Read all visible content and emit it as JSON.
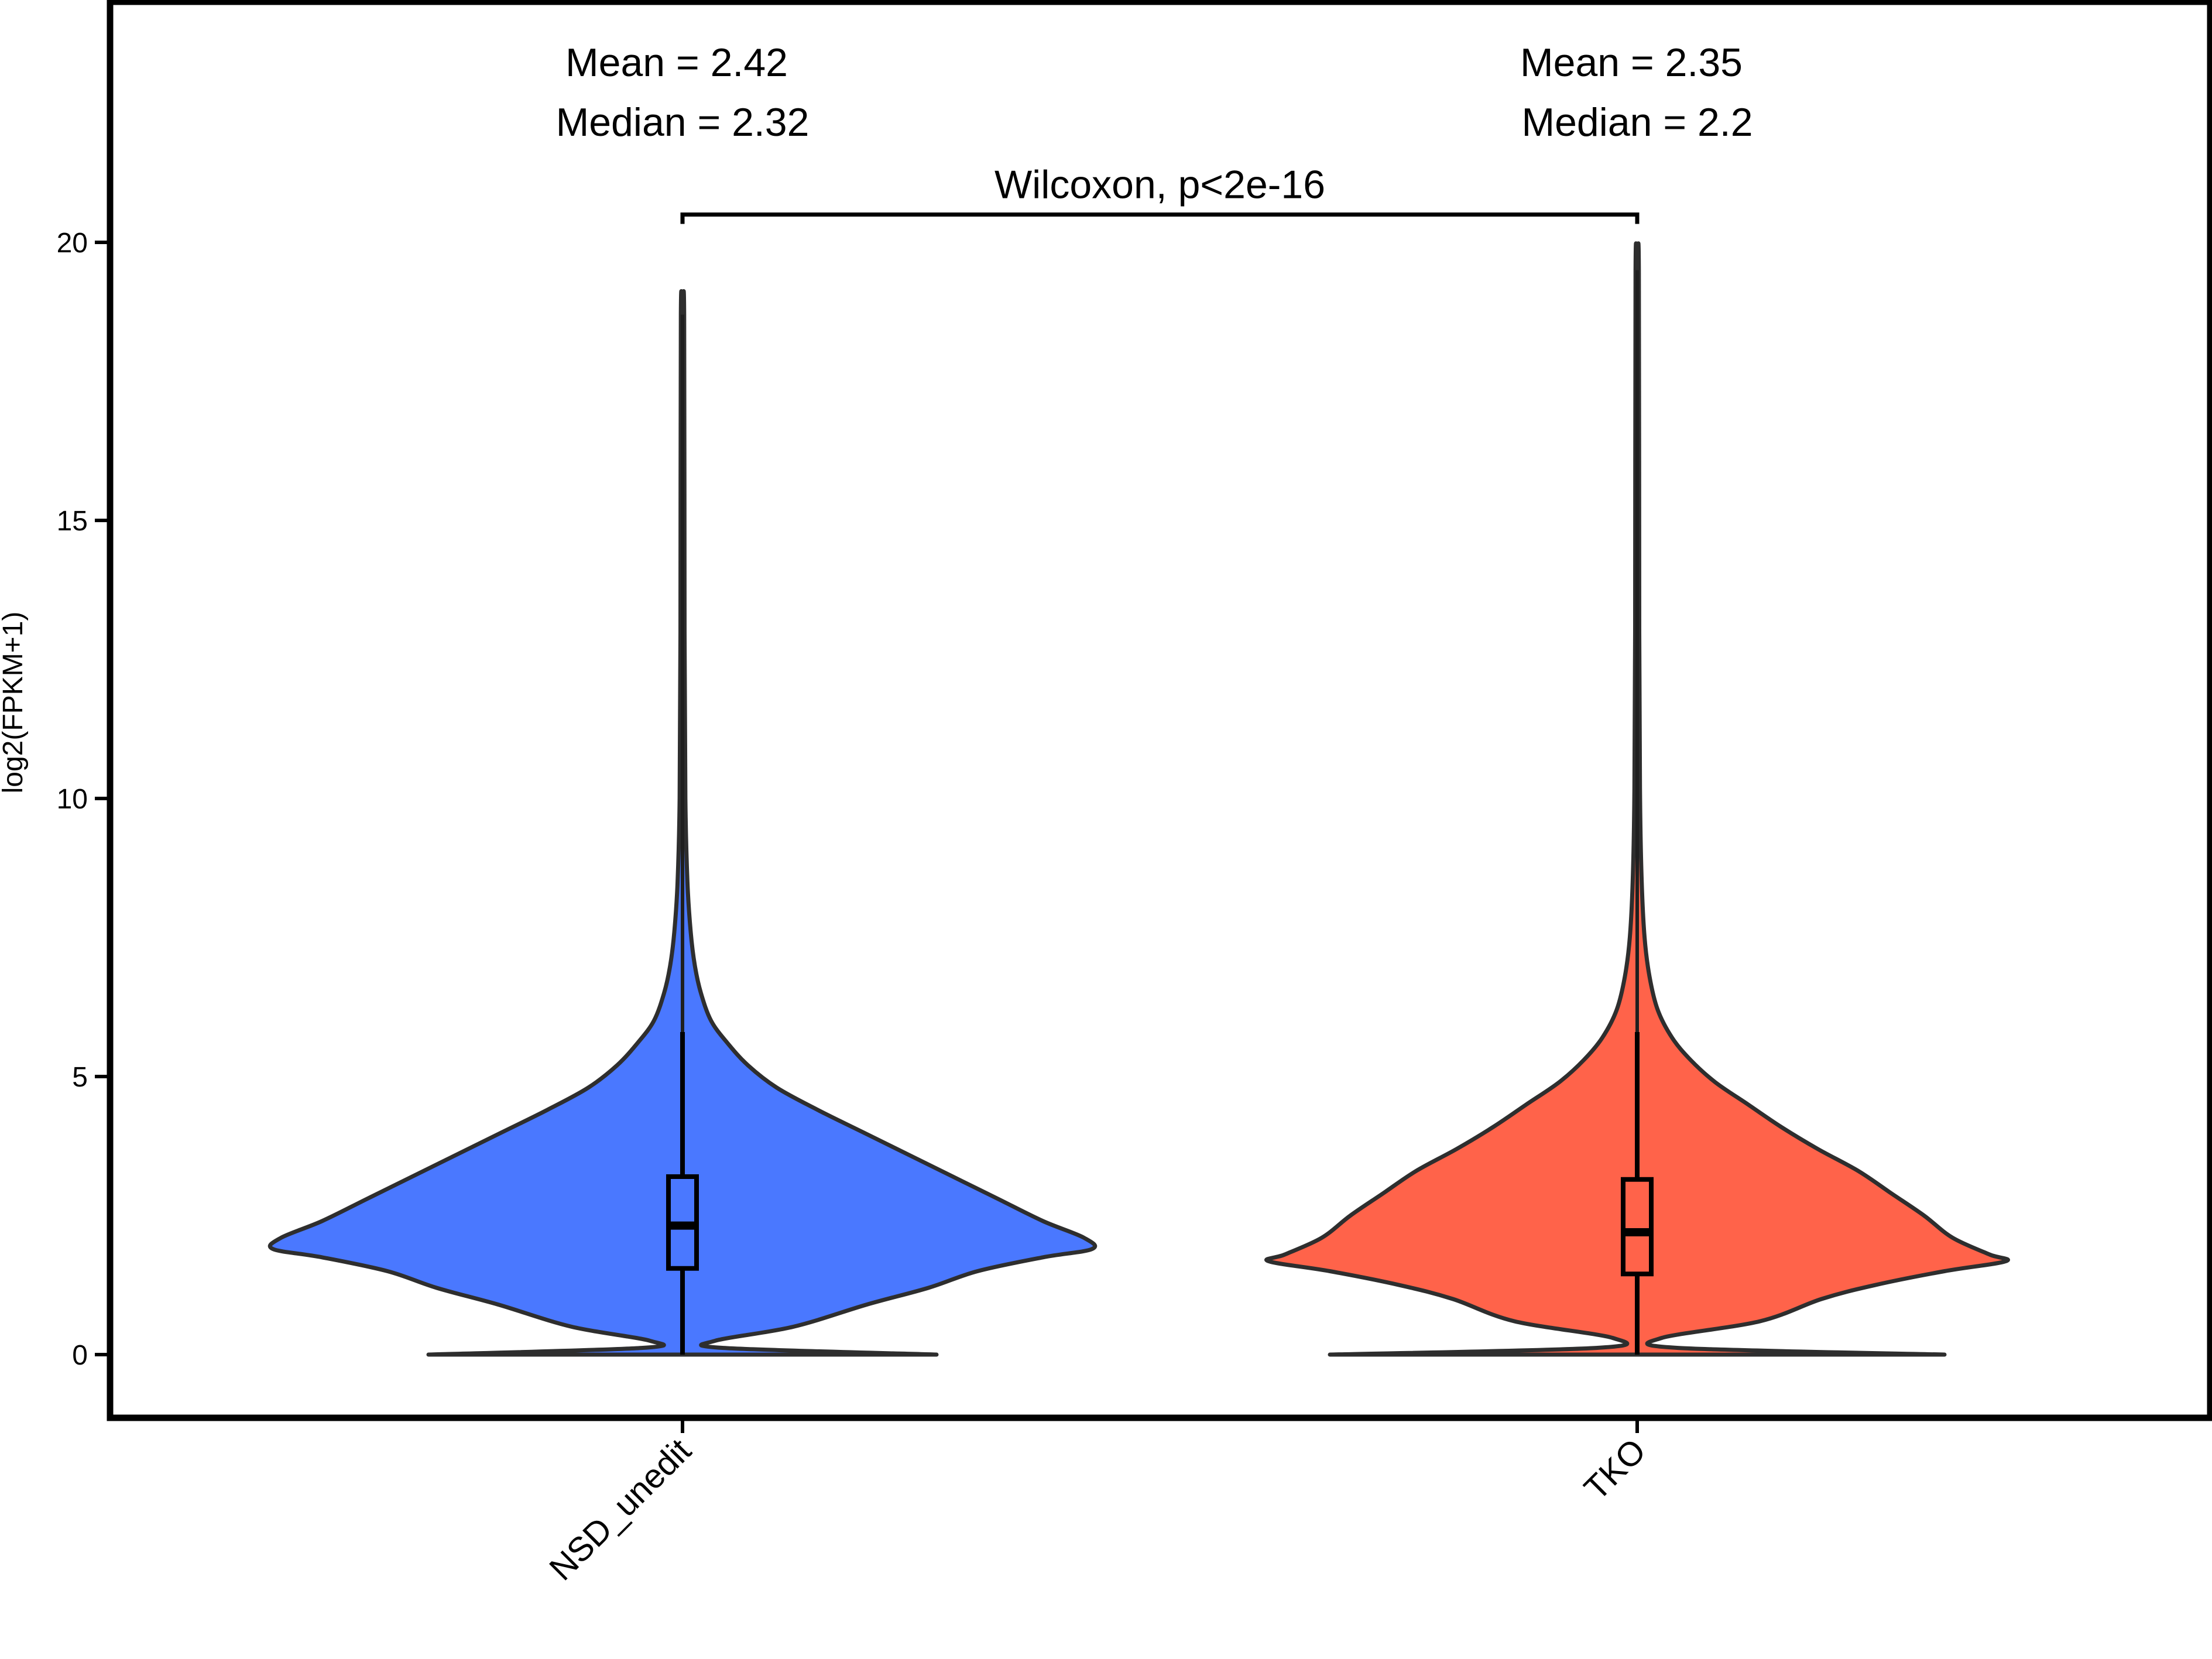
{
  "chart_data": {
    "type": "violin",
    "ylabel": "log2(FPKM+1)",
    "xlabel": "",
    "ylim": [
      -1.1,
      24
    ],
    "yticks": [
      0,
      5,
      10,
      15,
      20
    ],
    "categories": [
      "NSD_unedit",
      "TKO"
    ],
    "colors": [
      "#4a78ff",
      "#ff634a"
    ],
    "groups": [
      {
        "name": "NSD_unedit",
        "color": "#4a78ff",
        "max": 18.7,
        "box": {
          "q1": 1.55,
          "median": 2.32,
          "q3": 3.2,
          "whisker_low": 0,
          "whisker_high": 5.8
        },
        "annotation": {
          "mean": "Mean = 2.42",
          "median": "Median = 2.32"
        },
        "density": [
          [
            0,
            0.62
          ],
          [
            0.12,
            0.1
          ],
          [
            0.25,
            0.08
          ],
          [
            0.5,
            0.27
          ],
          [
            0.9,
            0.45
          ],
          [
            1.2,
            0.6
          ],
          [
            1.5,
            0.72
          ],
          [
            1.75,
            0.88
          ],
          [
            1.9,
            1.0
          ],
          [
            2.1,
            0.98
          ],
          [
            2.4,
            0.88
          ],
          [
            2.8,
            0.77
          ],
          [
            3.2,
            0.66
          ],
          [
            3.6,
            0.55
          ],
          [
            4.0,
            0.44
          ],
          [
            4.4,
            0.33
          ],
          [
            4.8,
            0.23
          ],
          [
            5.2,
            0.16
          ],
          [
            5.6,
            0.11
          ],
          [
            6.0,
            0.07
          ],
          [
            6.5,
            0.045
          ],
          [
            7.0,
            0.03
          ],
          [
            7.6,
            0.02
          ],
          [
            8.5,
            0.012
          ],
          [
            10.0,
            0.007
          ],
          [
            13.0,
            0.005
          ],
          [
            18.7,
            0.004
          ]
        ]
      },
      {
        "name": "TKO",
        "color": "#ff634a",
        "max": 19.5,
        "box": {
          "q1": 1.45,
          "median": 2.2,
          "q3": 3.15,
          "whisker_low": 0,
          "whisker_high": 5.8
        },
        "annotation": {
          "mean": "Mean = 2.35",
          "median": "Median = 2.2"
        },
        "density": [
          [
            0,
            0.75
          ],
          [
            0.12,
            0.1
          ],
          [
            0.3,
            0.06
          ],
          [
            0.6,
            0.3
          ],
          [
            1.0,
            0.45
          ],
          [
            1.25,
            0.58
          ],
          [
            1.5,
            0.75
          ],
          [
            1.68,
            0.9
          ],
          [
            1.8,
            0.86
          ],
          [
            2.1,
            0.77
          ],
          [
            2.5,
            0.7
          ],
          [
            2.9,
            0.62
          ],
          [
            3.3,
            0.54
          ],
          [
            3.7,
            0.44
          ],
          [
            4.1,
            0.35
          ],
          [
            4.5,
            0.27
          ],
          [
            4.9,
            0.19
          ],
          [
            5.3,
            0.13
          ],
          [
            5.7,
            0.085
          ],
          [
            6.2,
            0.05
          ],
          [
            6.8,
            0.03
          ],
          [
            7.5,
            0.018
          ],
          [
            8.5,
            0.011
          ],
          [
            10.0,
            0.007
          ],
          [
            13.0,
            0.005
          ],
          [
            19.5,
            0.004
          ]
        ]
      }
    ],
    "comparison": {
      "label": "Wilcoxon, p<2e-16",
      "y": 20.5
    }
  }
}
